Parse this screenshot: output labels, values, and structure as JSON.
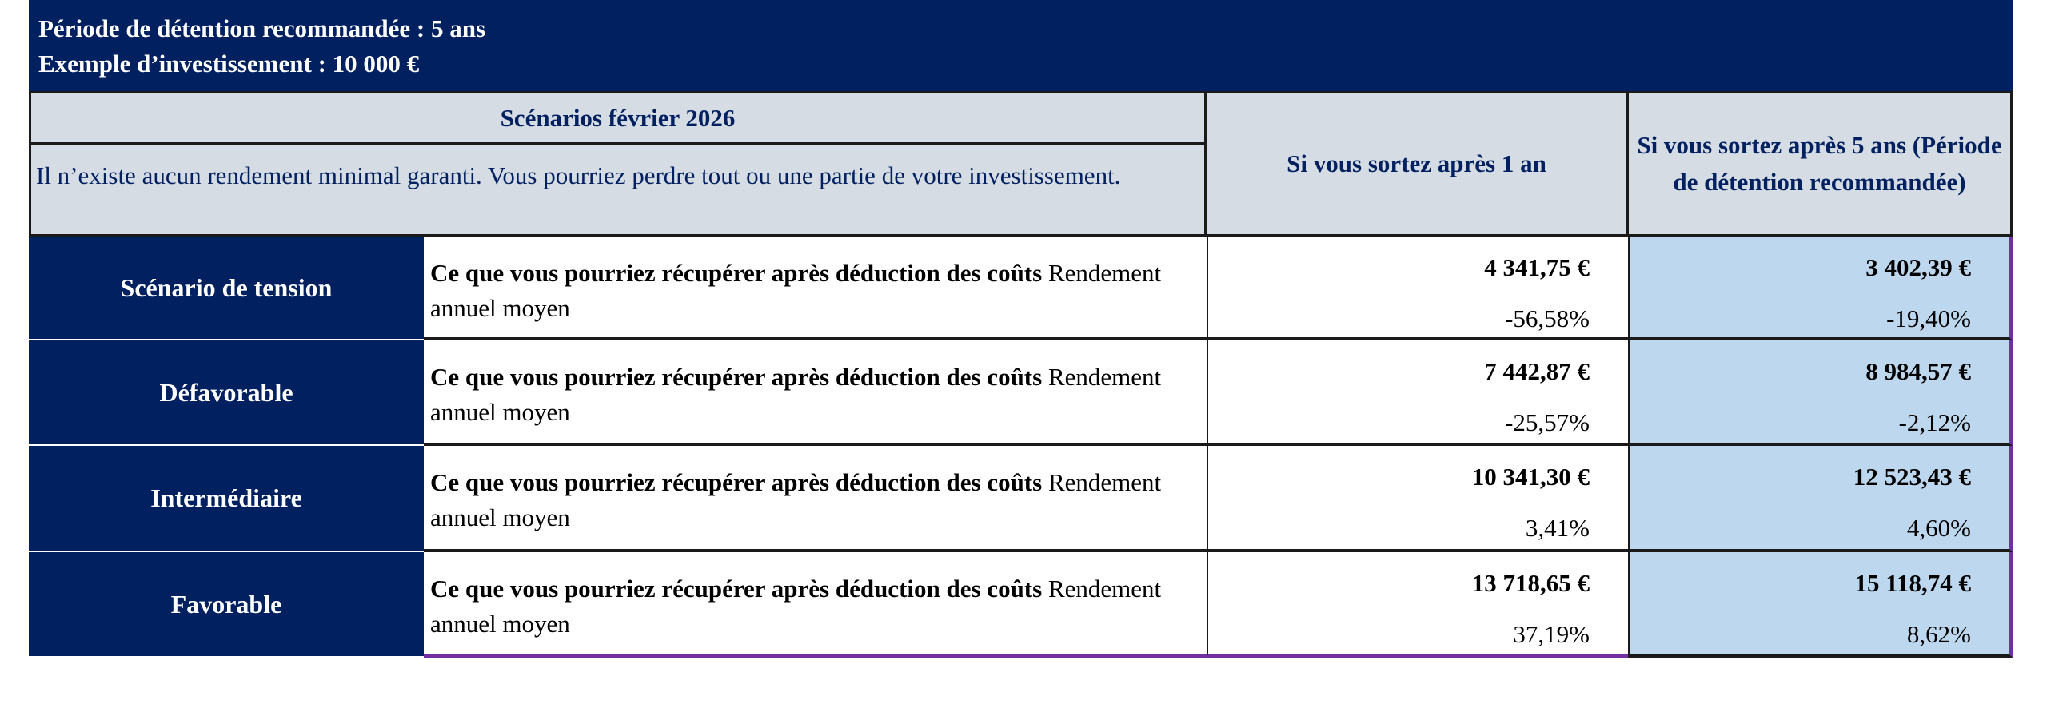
{
  "header": {
    "holding_period": "Période de détention recommandée : 5 ans",
    "investment_example": "Exemple d’investissement : 10 000 €"
  },
  "table": {
    "title": "Scénarios février 2026",
    "disclaimer": "Il n’existe aucun rendement minimal garanti. Vous pourriez perdre tout ou une partie de votre investissement.",
    "col_1_year": "Si vous sortez après 1 an",
    "col_5_years": "Si vous sortez après 5 ans (Période de détention recommandée)",
    "colors": {
      "navy": "#002060",
      "grey": "#D6DCE4",
      "light_blue": "#BDD7EE",
      "purple": "#7030A0"
    },
    "rows": [
      {
        "label": "Scénario de tension",
        "desc_bold": "Ce que vous pourriez récupérer après déduction des coûts",
        "desc_normal": " Rendement annuel moyen",
        "amount_1y": "4 341,75 €",
        "pct_1y": "-56,58%",
        "amount_5y": "3 402,39 €",
        "pct_5y": "-19,40%"
      },
      {
        "label": "Défavorable",
        "desc_bold": "Ce que vous pourriez récupérer après déduction des coûts",
        "desc_normal": " Rendement annuel moyen",
        "amount_1y": "7 442,87 €",
        "pct_1y": "-25,57%",
        "amount_5y": "8 984,57 €",
        "pct_5y": "-2,12%"
      },
      {
        "label": "Intermédiaire",
        "desc_bold": "Ce que vous pourriez récupérer après déduction des coûts",
        "desc_normal": " Rendement annuel moyen",
        "amount_1y": "10 341,30 €",
        "pct_1y": "3,41%",
        "amount_5y": "12 523,43 €",
        "pct_5y": "4,60%"
      },
      {
        "label": "Favorable",
        "desc_bold": "Ce que vous pourriez récupérer après déduction des coûts",
        "desc_normal": " Rendement annuel moyen",
        "amount_1y": "13 718,65 €",
        "pct_1y": "37,19%",
        "amount_5y": "15 118,74 €",
        "pct_5y": "8,62%"
      }
    ]
  }
}
